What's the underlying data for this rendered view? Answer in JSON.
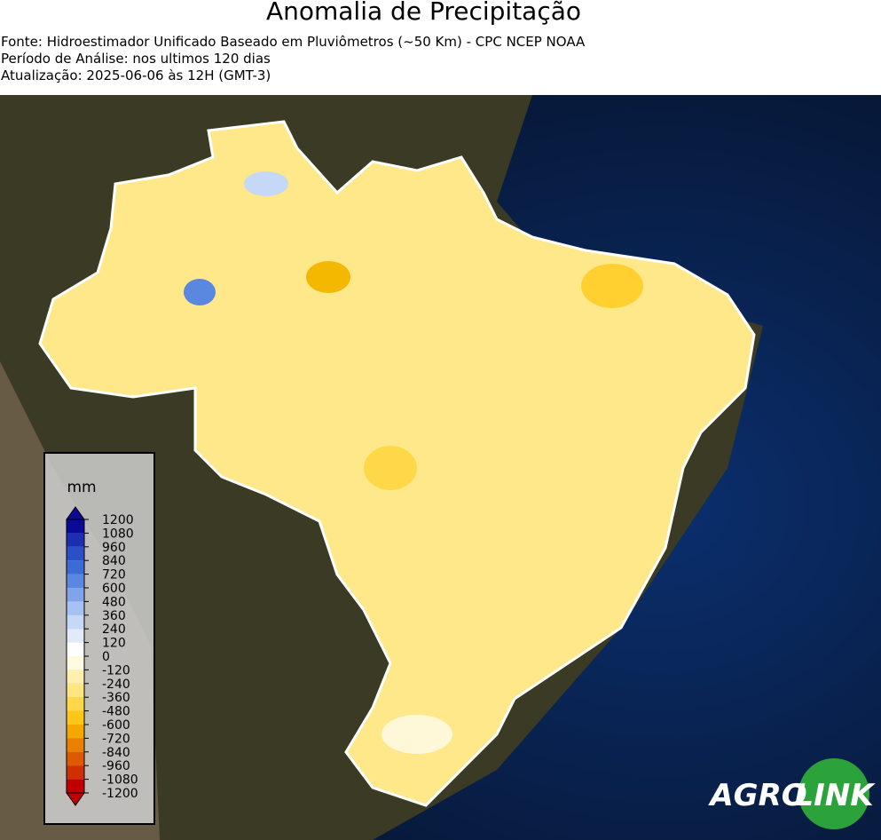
{
  "header": {
    "title": "Anomalia de Precipitação",
    "lines": [
      "Fonte: Hidroestimador Unificado Baseado em Pluviômetros (~50 Km) - CPC NCEP NOAA",
      "Período de Análise: nos ultimos 120 dias",
      "Atualização: 2025-06-06 às 12H (GMT-3)"
    ]
  },
  "colorbar": {
    "unit": "mm",
    "ticks": [
      1200,
      1080,
      960,
      840,
      720,
      600,
      480,
      360,
      240,
      120,
      0,
      -120,
      -240,
      -360,
      -480,
      -600,
      -720,
      -840,
      -960,
      -1080,
      -1200
    ],
    "colors": [
      "#0a0a9a",
      "#1c2fb0",
      "#2a4fc7",
      "#3d6bd6",
      "#5a88e0",
      "#7fa4ea",
      "#a6c2f2",
      "#c6d8f7",
      "#e0eafb",
      "#ffffff",
      "#fffbe3",
      "#fff0b0",
      "#ffe680",
      "#ffd84a",
      "#ffc61a",
      "#f5a800",
      "#ea8000",
      "#dd5a00",
      "#cf3000",
      "#c00000"
    ]
  },
  "logo": {
    "left": "AGRO",
    "right": "LINK"
  }
}
